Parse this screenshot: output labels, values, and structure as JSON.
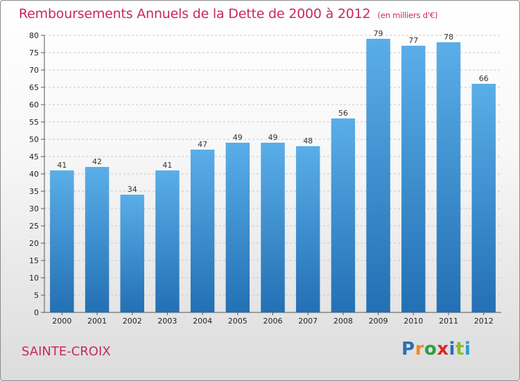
{
  "header": {
    "title": "Remboursements Annuels de la Dette de 2000 à 2012",
    "unit": "(en milliers d'€)"
  },
  "footer": {
    "town": "SAINTE-CROIX",
    "logo_letters": [
      "P",
      "r",
      "o",
      "x",
      "i",
      "t",
      "i"
    ],
    "logo_colors": [
      "#2b6fb5",
      "#f08a1c",
      "#2e9e3e",
      "#d62a2a",
      "#2b6fb5",
      "#8dbd2c",
      "#2b9bd3"
    ]
  },
  "colors": {
    "accent": "#c8285f",
    "bar_top": "#5aaee8",
    "bar_bottom": "#2370b4",
    "grid": "#c8c8c8"
  },
  "chart_data": {
    "type": "bar",
    "title": "Remboursements Annuels de la Dette de 2000 à 2012",
    "categories": [
      "2000",
      "2001",
      "2002",
      "2003",
      "2004",
      "2005",
      "2006",
      "2007",
      "2008",
      "2009",
      "2010",
      "2011",
      "2012"
    ],
    "values": [
      41,
      42,
      34,
      41,
      47,
      49,
      49,
      48,
      56,
      79,
      77,
      78,
      66
    ],
    "ylim": [
      0,
      80
    ],
    "yticks": [
      0,
      5,
      10,
      15,
      20,
      25,
      30,
      35,
      40,
      45,
      50,
      55,
      60,
      65,
      70,
      75,
      80
    ],
    "grid": true,
    "xlabel": "",
    "ylabel": ""
  }
}
